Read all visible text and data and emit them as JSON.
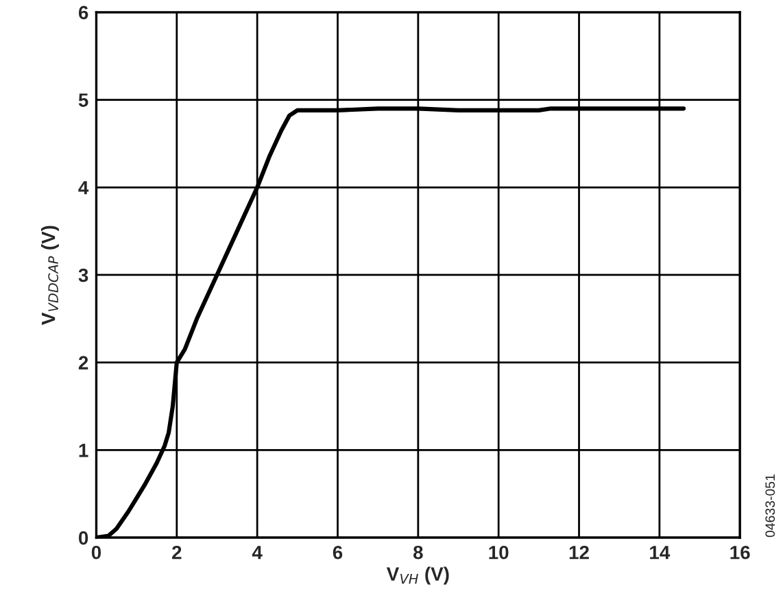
{
  "chart_data": {
    "type": "line",
    "xlabel": "V$_{VH}$ (V)",
    "ylabel": "V$_{VDDCAP}$ (V)",
    "annotations": [
      "04633-051"
    ],
    "series": [
      {
        "color": "#000000",
        "x": [
          0,
          0.3,
          0.5,
          0.8,
          1.0,
          1.2,
          1.5,
          1.7,
          1.8,
          1.9,
          2.0,
          2.2,
          2.5,
          3.0,
          3.5,
          4.0,
          4.3,
          4.6,
          4.8,
          5.0,
          6.0,
          7.0,
          8.0,
          9.0,
          10.0,
          11.0,
          11.3,
          12.0,
          13.0,
          14.6
        ],
        "values": [
          0,
          0.02,
          0.1,
          0.3,
          0.45,
          0.6,
          0.85,
          1.05,
          1.2,
          1.5,
          2.0,
          2.15,
          2.5,
          3.0,
          3.5,
          4.0,
          4.35,
          4.65,
          4.82,
          4.88,
          4.88,
          4.9,
          4.9,
          4.88,
          4.88,
          4.88,
          4.9,
          4.9,
          4.9,
          4.9
        ]
      }
    ],
    "xlim": [
      0,
      16
    ],
    "ylim": [
      0,
      6
    ],
    "xticks": [
      0,
      2,
      4,
      6,
      8,
      10,
      12,
      14,
      16
    ],
    "yticks": [
      0,
      1,
      2,
      3,
      4,
      5,
      6
    ],
    "grid": true,
    "legend": false,
    "marker": "none",
    "line_style": "solid"
  }
}
